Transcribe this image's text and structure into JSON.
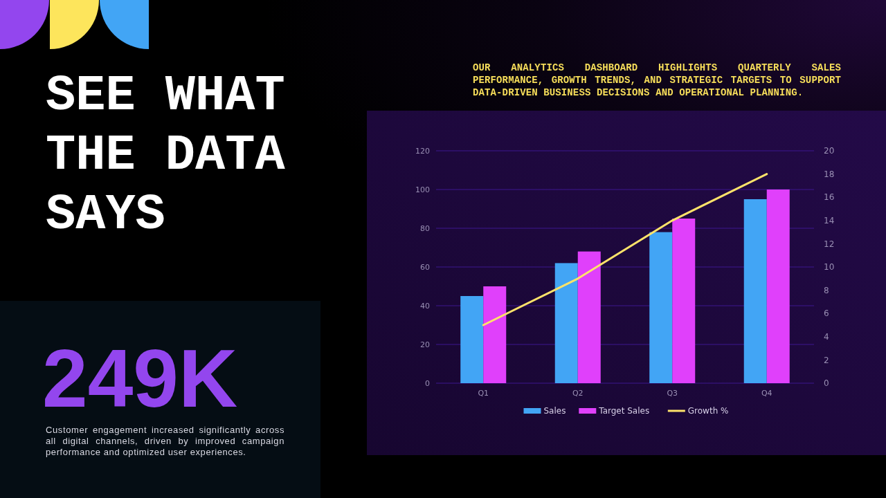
{
  "chart_data": {
    "type": "bar",
    "title": "SEE WHAT THE DATA SAYS",
    "subtitle": "OUR ANALYTICS DASHBOARD HIGHLIGHTS QUARTERLY SALES PERFORMANCE, GROWTH TRENDS, AND STRATEGIC TARGETS TO SUPPORT DATA-DRIVEN BUSINESS DECISIONS AND OPERATIONAL PLANNING.",
    "annotations": [
      "249K",
      "Customer engagement increased significantly across all digital channels, driven by improved campaign performance and optimized user experiences."
    ],
    "categories": [
      "Q1",
      "Q2",
      "Q3",
      "Q4"
    ],
    "series": [
      {
        "name": "Sales",
        "color": "#42a5f5",
        "values": [
          45,
          62,
          78,
          95
        ]
      },
      {
        "name": "Target Sales",
        "color": "#e040fb",
        "values": [
          50,
          68,
          85,
          100
        ]
      },
      {
        "name": "Growth %",
        "type": "line",
        "axis": "y2",
        "color": "#fde36a",
        "values": [
          5,
          9,
          14,
          18
        ]
      }
    ],
    "ylim": [
      0,
      120
    ],
    "yticks": [
      0,
      20,
      40,
      60,
      80,
      100,
      120
    ],
    "y2lim": [
      0,
      20
    ],
    "y2ticks": [
      0,
      2,
      4,
      6,
      8,
      10,
      12,
      14,
      16,
      18,
      20
    ],
    "grid": "y",
    "legend": "bottom"
  }
}
